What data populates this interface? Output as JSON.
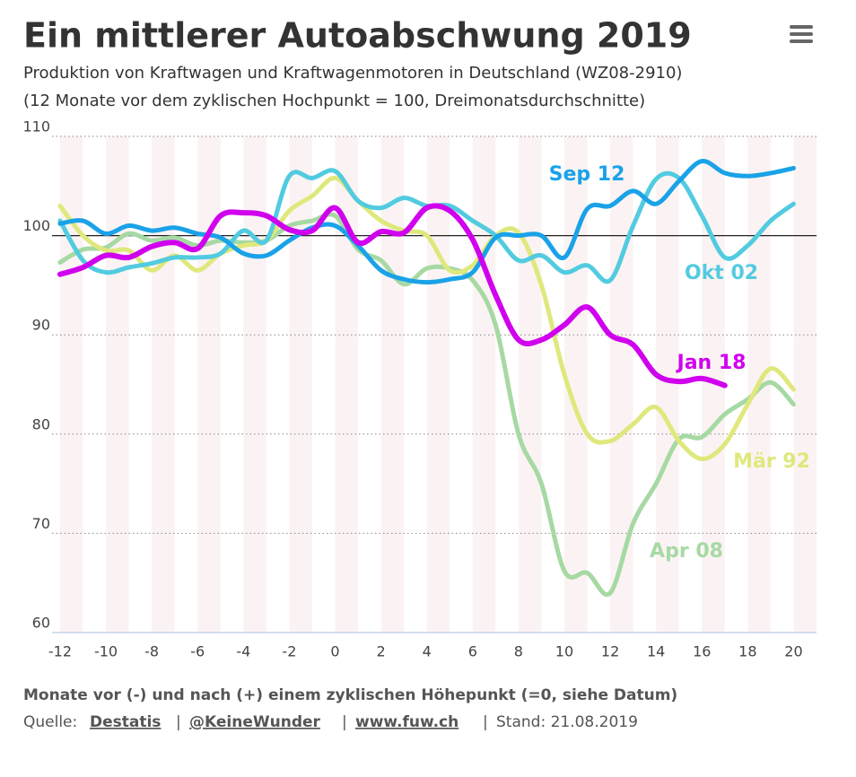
{
  "chart_data": {
    "type": "line",
    "title": "Ein mittlerer Autoabschwung 2019",
    "subtitle": [
      "Produktion von Kraftwagen und Kraftwagenmotoren in Deutschland (WZ08-2910)",
      "(12 Monate vor dem zyklischen Hochpunkt = 100, Dreimonatsdurchschnitte)"
    ],
    "x_label": "Monate vor (-) und nach (+) einem zyklischen Höhepunkt (=0, siehe Datum)",
    "source": {
      "prefix": "Quelle:",
      "links": [
        "Destatis",
        "@KeineWunder",
        "www.fuw.ch"
      ],
      "separator": "|",
      "date": "Stand: 21.08.2019"
    },
    "x": [
      -12,
      -11,
      -10,
      -9,
      -8,
      -7,
      -6,
      -5,
      -4,
      -3,
      -2,
      -1,
      0,
      1,
      2,
      3,
      4,
      5,
      6,
      7,
      8,
      9,
      10,
      11,
      12,
      13,
      14,
      15,
      16,
      17,
      18,
      19,
      20
    ],
    "xlim": [
      -12.35,
      21
    ],
    "xticks": [
      -12,
      -10,
      -8,
      -6,
      -4,
      -2,
      0,
      2,
      4,
      6,
      8,
      10,
      12,
      14,
      16,
      18,
      20
    ],
    "ylim": [
      60,
      110
    ],
    "yticks": [
      60,
      70,
      80,
      90,
      100,
      110
    ],
    "grid": true,
    "reference_y": 100,
    "series": [
      {
        "name": "Apr 08",
        "color": "#a6d9a3",
        "values": [
          97.3,
          98.6,
          98.8,
          100.2,
          99.5,
          99.8,
          99,
          99.5,
          99.3,
          99.5,
          101,
          101.5,
          102,
          98.6,
          97.5,
          95.1,
          96.7,
          96.7,
          95.5,
          91,
          80,
          75,
          66.2,
          66,
          64,
          71,
          75,
          79.5,
          79.7,
          82,
          83.5,
          85.2,
          83
        ]
      },
      {
        "name": "Mär 92",
        "color": "#dfe87c",
        "values": [
          103,
          100,
          98.5,
          98.5,
          96.5,
          98,
          96.5,
          98.2,
          99,
          99.5,
          102.5,
          104,
          105.8,
          103.5,
          101.5,
          100.5,
          100,
          96.5,
          97,
          100,
          100.3,
          95,
          86,
          80,
          79.3,
          81,
          82.7,
          79.3,
          77.5,
          79,
          83,
          86.6,
          84.5
        ]
      },
      {
        "name": "Okt 02",
        "color": "#52cbe0",
        "values": [
          101.5,
          97.5,
          96.3,
          96.8,
          97.2,
          97.8,
          97.8,
          98.2,
          100.5,
          99.5,
          106,
          105.8,
          106.5,
          103.5,
          102.8,
          103.8,
          103,
          103,
          101.5,
          100,
          97.5,
          98,
          96.3,
          97,
          95.5,
          101,
          105.7,
          105.8,
          102,
          97.8,
          99,
          101.5,
          103.2
        ]
      },
      {
        "name": "Sep 12",
        "color": "#1aa2e8",
        "values": [
          101.2,
          101.5,
          100.2,
          101,
          100.5,
          100.8,
          100.2,
          99.8,
          98.2,
          98,
          99.5,
          100.8,
          101,
          99,
          96.5,
          95.6,
          95.3,
          95.6,
          96.3,
          99.8,
          100,
          100,
          97.8,
          102.7,
          103,
          104.5,
          103.2,
          105.5,
          107.5,
          106.3,
          106,
          106.3,
          106.8
        ]
      },
      {
        "name": "Jan 18",
        "color": "#d000ee",
        "values": [
          96.1,
          96.8,
          98,
          97.8,
          98.9,
          99.3,
          98.7,
          102,
          102.3,
          102,
          100.6,
          100.5,
          102.8,
          99.3,
          100.4,
          100.3,
          102.8,
          102.5,
          99.6,
          94,
          89.5,
          89.5,
          91,
          92.8,
          90,
          89,
          86,
          85.3,
          85.6,
          84.9,
          null,
          null,
          null
        ]
      }
    ]
  }
}
